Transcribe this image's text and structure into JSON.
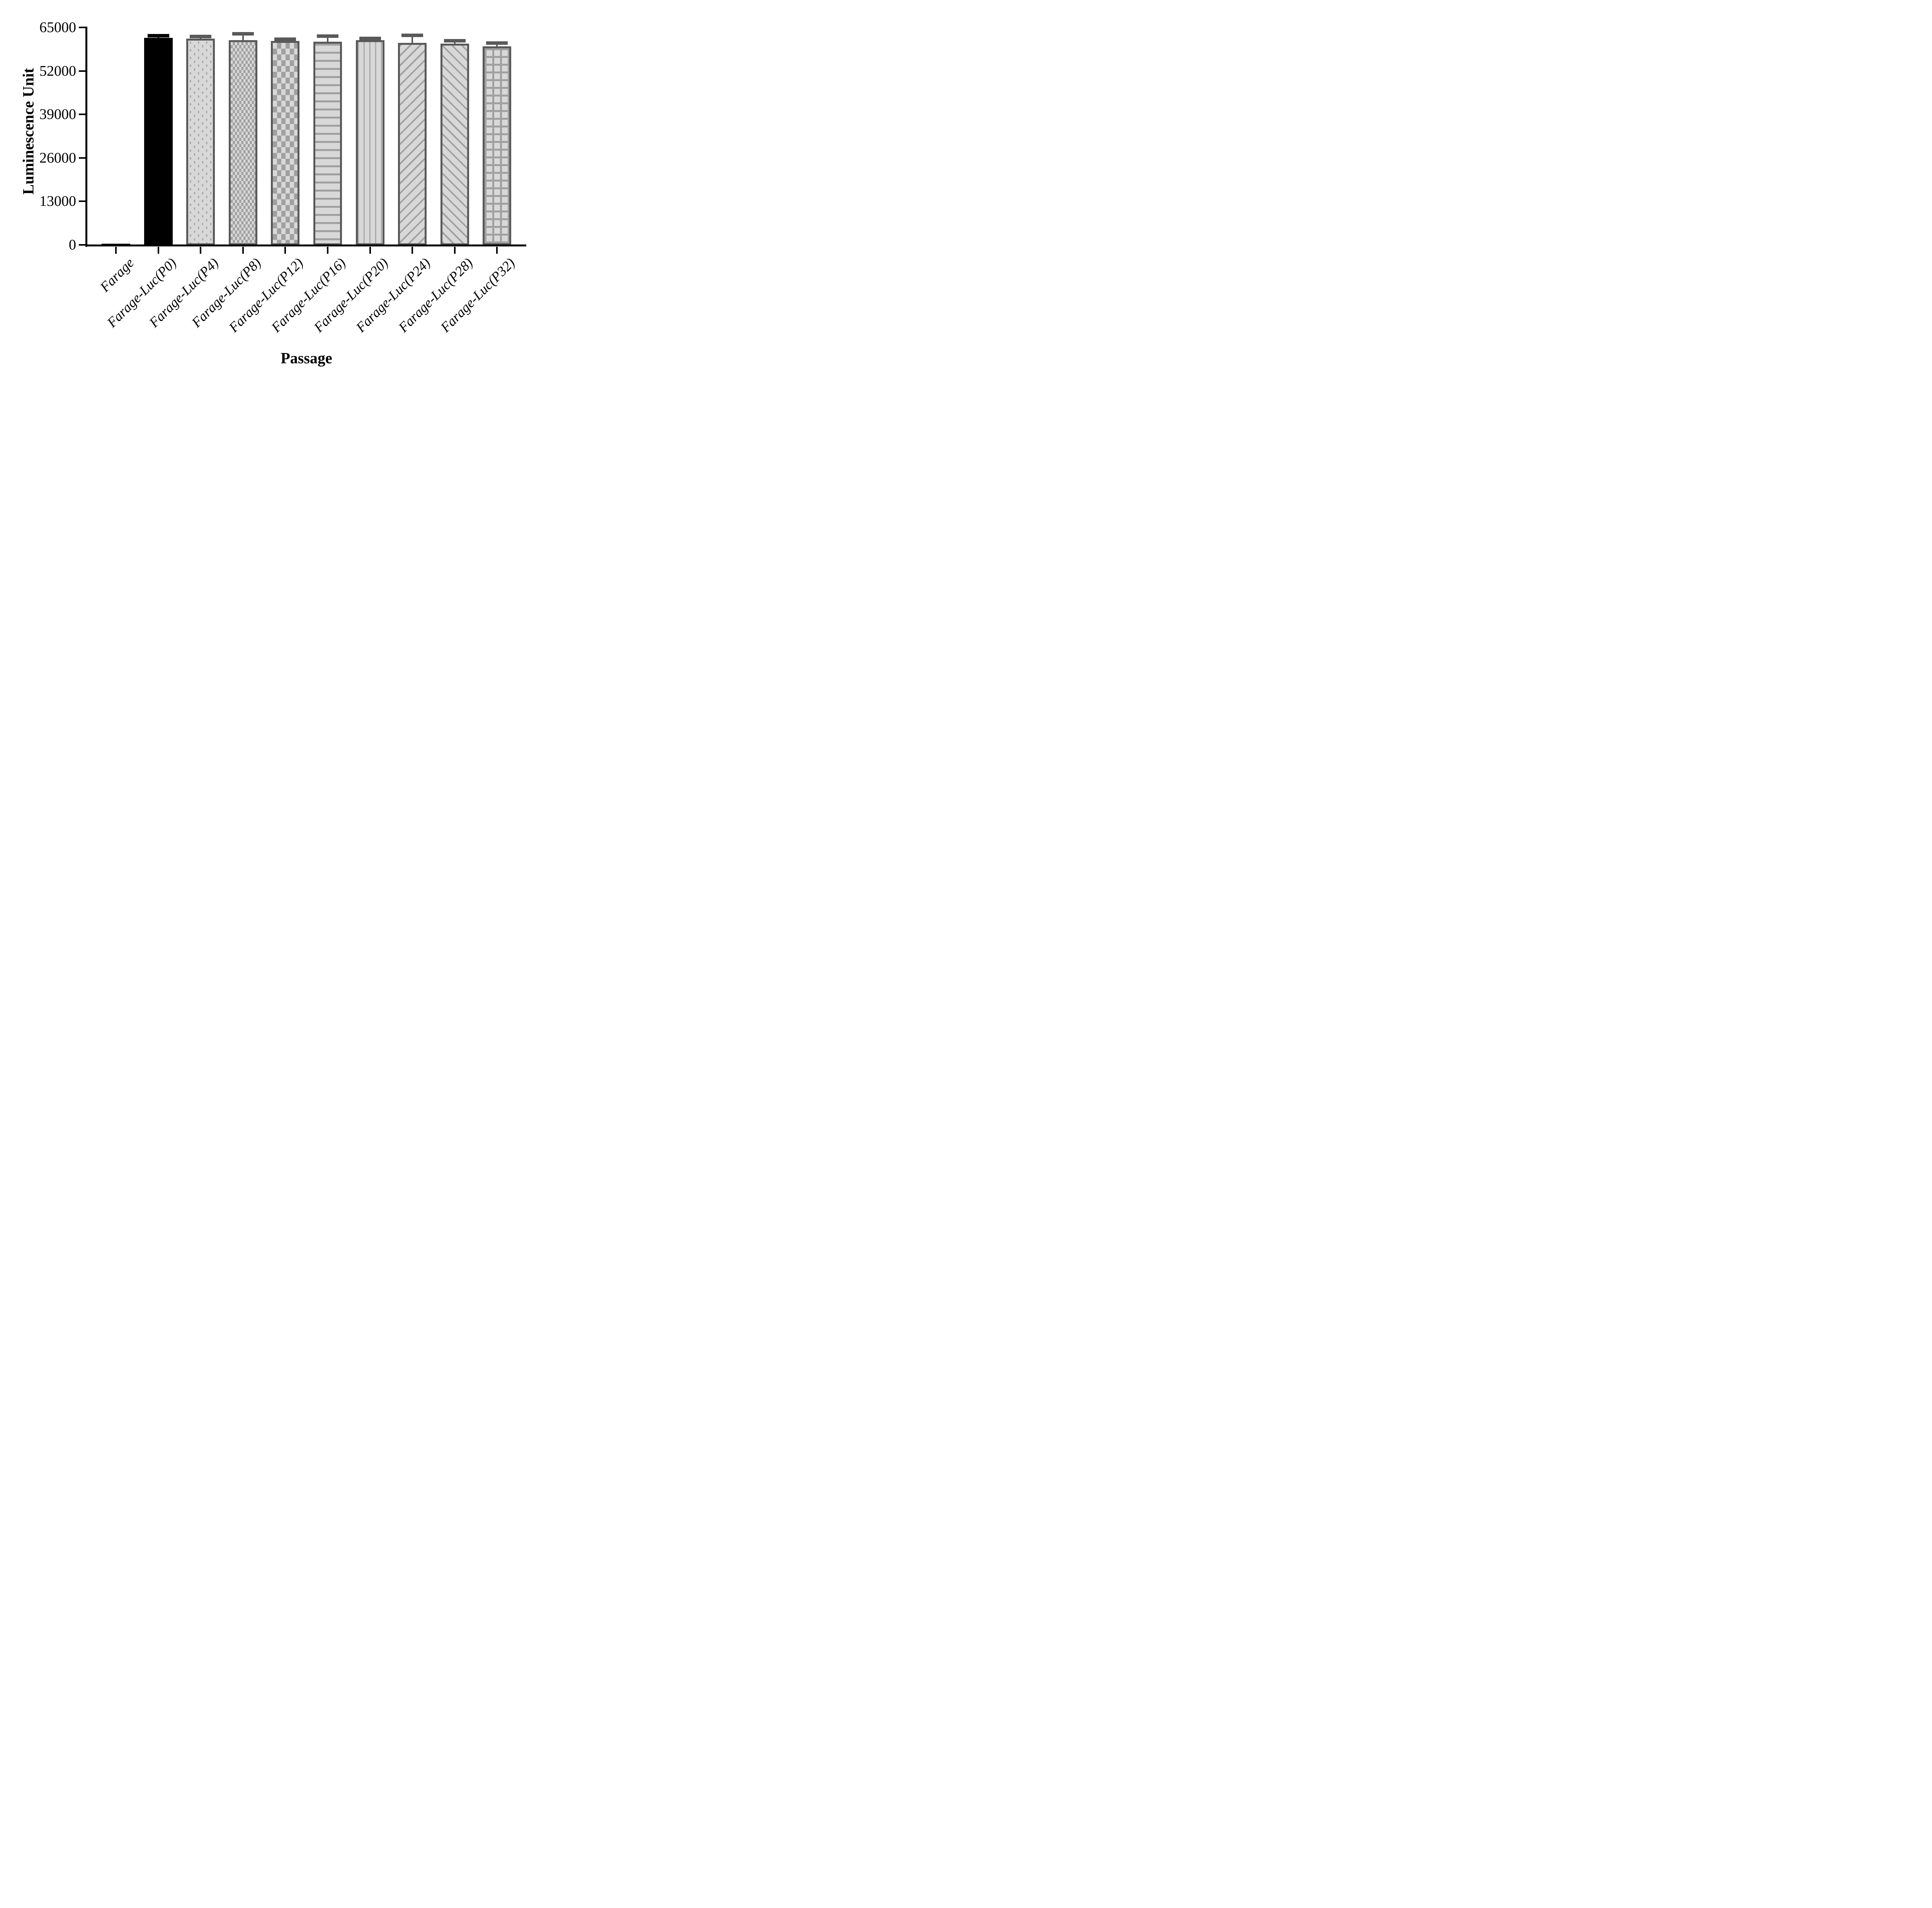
{
  "figure": {
    "y_axis_title": "Luminescence Unit",
    "x_axis_title": "Passage",
    "background": "#ffffff"
  },
  "chart_data": {
    "type": "bar",
    "title": "",
    "xlabel": "Passage",
    "ylabel": "Luminescence Unit",
    "ylim": [
      0,
      65000
    ],
    "yticks": [
      0,
      13000,
      26000,
      39000,
      52000,
      65000
    ],
    "grid": false,
    "legend": false,
    "categories": [
      "Farage",
      "Farage-Luc(P0)",
      "Farage-Luc(P4)",
      "Farage-Luc(P8)",
      "Farage-Luc(P12)",
      "Farage-Luc(P16)",
      "Farage-Luc(P20)",
      "Farage-Luc(P24)",
      "Farage-Luc(P28)",
      "Farage-Luc(P32)"
    ],
    "values": [
      400,
      61900,
      61700,
      61200,
      61000,
      60700,
      61200,
      60400,
      60200,
      59300
    ],
    "error_sd_upper": [
      0,
      650,
      700,
      2000,
      500,
      1800,
      550,
      2300,
      850,
      1100
    ],
    "bar_patterns": [
      "solid-black",
      "solid-black",
      "dots",
      "checker-small",
      "checker-large",
      "horizontal-lines",
      "vertical-lines",
      "diagonal-forward",
      "diagonal-backward",
      "grid"
    ],
    "colors": {
      "solid_bar": "#000000",
      "pattern_fill": "#d8d8d8",
      "pattern_ink": "#a0a0a0",
      "bar_outline": "#595959",
      "axis": "#000000"
    }
  }
}
